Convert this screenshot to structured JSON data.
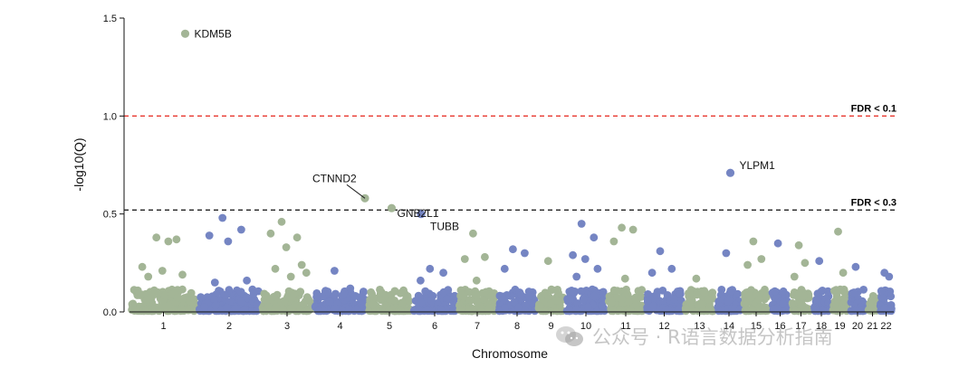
{
  "chart_data": {
    "type": "scatter",
    "title": "",
    "xlabel": "Chromosome",
    "ylabel": "-log10(Q)",
    "ylim": [
      0,
      1.5
    ],
    "yticks": [
      "0.0",
      "0.5",
      "1.0",
      "1.5"
    ],
    "chromosomes": [
      "1",
      "2",
      "3",
      "4",
      "5",
      "6",
      "7",
      "8",
      "9",
      "10",
      "11",
      "12",
      "13",
      "14",
      "15",
      "16",
      "17",
      "18",
      "19",
      "20",
      "21",
      "22"
    ],
    "colors": {
      "odd": "#a3b596",
      "even": "#7585c3"
    },
    "thresholds": [
      {
        "label": "FDR < 0.1",
        "y": 1.0,
        "color": "#e8372f"
      },
      {
        "label": "FDR < 0.3",
        "y": 0.52,
        "color": "#222222"
      }
    ],
    "labeled_genes": [
      {
        "gene": "KDM5B",
        "chrom": "1",
        "y": 1.42
      },
      {
        "gene": "CTNND2",
        "chrom": "5",
        "y": 0.58
      },
      {
        "gene": "GNB2L1",
        "chrom": "5",
        "y": 0.53
      },
      {
        "gene": "TUBB",
        "chrom": "6",
        "y": 0.5
      },
      {
        "gene": "YLPM1",
        "chrom": "14",
        "y": 0.71
      }
    ],
    "notable_points": [
      {
        "chrom": "1",
        "y": 0.38
      },
      {
        "chrom": "1",
        "y": 0.37
      },
      {
        "chrom": "1",
        "y": 0.23
      },
      {
        "chrom": "1",
        "y": 0.21
      },
      {
        "chrom": "1",
        "y": 0.19
      },
      {
        "chrom": "1",
        "y": 0.18
      },
      {
        "chrom": "1",
        "y": 0.36
      },
      {
        "chrom": "2",
        "y": 0.48
      },
      {
        "chrom": "2",
        "y": 0.42
      },
      {
        "chrom": "2",
        "y": 0.39
      },
      {
        "chrom": "2",
        "y": 0.36
      },
      {
        "chrom": "2",
        "y": 0.16
      },
      {
        "chrom": "2",
        "y": 0.15
      },
      {
        "chrom": "3",
        "y": 0.46
      },
      {
        "chrom": "3",
        "y": 0.38
      },
      {
        "chrom": "3",
        "y": 0.4
      },
      {
        "chrom": "3",
        "y": 0.33
      },
      {
        "chrom": "3",
        "y": 0.24
      },
      {
        "chrom": "3",
        "y": 0.22
      },
      {
        "chrom": "3",
        "y": 0.18
      },
      {
        "chrom": "3",
        "y": 0.2
      },
      {
        "chrom": "4",
        "y": 0.21
      },
      {
        "chrom": "4",
        "y": 0.12
      },
      {
        "chrom": "6",
        "y": 0.22
      },
      {
        "chrom": "6",
        "y": 0.2
      },
      {
        "chrom": "6",
        "y": 0.16
      },
      {
        "chrom": "7",
        "y": 0.4
      },
      {
        "chrom": "7",
        "y": 0.28
      },
      {
        "chrom": "7",
        "y": 0.27
      },
      {
        "chrom": "7",
        "y": 0.16
      },
      {
        "chrom": "8",
        "y": 0.32
      },
      {
        "chrom": "8",
        "y": 0.3
      },
      {
        "chrom": "8",
        "y": 0.22
      },
      {
        "chrom": "9",
        "y": 0.26
      },
      {
        "chrom": "10",
        "y": 0.45
      },
      {
        "chrom": "10",
        "y": 0.38
      },
      {
        "chrom": "10",
        "y": 0.29
      },
      {
        "chrom": "10",
        "y": 0.27
      },
      {
        "chrom": "10",
        "y": 0.22
      },
      {
        "chrom": "10",
        "y": 0.18
      },
      {
        "chrom": "11",
        "y": 0.43
      },
      {
        "chrom": "11",
        "y": 0.42
      },
      {
        "chrom": "11",
        "y": 0.36
      },
      {
        "chrom": "11",
        "y": 0.17
      },
      {
        "chrom": "12",
        "y": 0.31
      },
      {
        "chrom": "12",
        "y": 0.22
      },
      {
        "chrom": "12",
        "y": 0.2
      },
      {
        "chrom": "13",
        "y": 0.17
      },
      {
        "chrom": "14",
        "y": 0.3
      },
      {
        "chrom": "15",
        "y": 0.36
      },
      {
        "chrom": "15",
        "y": 0.27
      },
      {
        "chrom": "15",
        "y": 0.24
      },
      {
        "chrom": "16",
        "y": 0.35
      },
      {
        "chrom": "17",
        "y": 0.34
      },
      {
        "chrom": "17",
        "y": 0.25
      },
      {
        "chrom": "17",
        "y": 0.18
      },
      {
        "chrom": "18",
        "y": 0.26
      },
      {
        "chrom": "19",
        "y": 0.41
      },
      {
        "chrom": "19",
        "y": 0.2
      },
      {
        "chrom": "20",
        "y": 0.23
      },
      {
        "chrom": "22",
        "y": 0.2
      },
      {
        "chrom": "22",
        "y": 0.18
      }
    ]
  },
  "watermark": "公众号 · R语言数据分析指南"
}
